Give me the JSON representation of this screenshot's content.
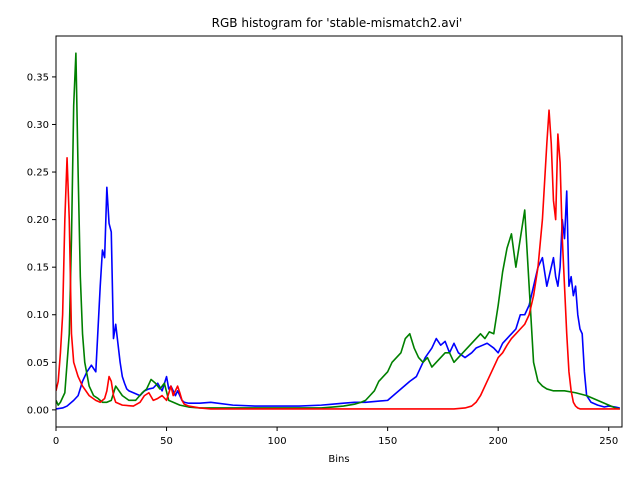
{
  "chart_data": {
    "type": "line",
    "title": "RGB histogram for 'stable-mismatch2.avi'",
    "xlabel": "Bins",
    "ylabel": "",
    "xlim": [
      0,
      256
    ],
    "ylim": [
      -0.018,
      0.393
    ],
    "grid": false,
    "legend": "none",
    "xticks": [
      0,
      50,
      100,
      150,
      200,
      250
    ],
    "xtick_labels": [
      "0",
      "50",
      "100",
      "150",
      "200",
      "250"
    ],
    "yticks": [
      0.0,
      0.05,
      0.1,
      0.15,
      0.2,
      0.25,
      0.3,
      0.35
    ],
    "ytick_labels": [
      "0.00",
      "0.05",
      "0.10",
      "0.15",
      "0.20",
      "0.25",
      "0.30",
      "0.35"
    ],
    "series": [
      {
        "name": "blue",
        "color": "#0000ff",
        "x": [
          0,
          3,
          5,
          8,
          10,
          12,
          14,
          16,
          18,
          20,
          21,
          22,
          23,
          24,
          25,
          26,
          27,
          28,
          29,
          30,
          31,
          32,
          33,
          35,
          38,
          40,
          42,
          44,
          46,
          48,
          50,
          51,
          52,
          53,
          54,
          55,
          57,
          58,
          60,
          65,
          70,
          80,
          90,
          100,
          110,
          120,
          125,
          130,
          135,
          140,
          145,
          150,
          155,
          160,
          163,
          165,
          167,
          170,
          172,
          174,
          176,
          178,
          180,
          182,
          185,
          188,
          190,
          193,
          195,
          198,
          200,
          202,
          204,
          206,
          208,
          210,
          212,
          214,
          216,
          218,
          220,
          222,
          223,
          225,
          226,
          227,
          228,
          229,
          230,
          231,
          232,
          233,
          234,
          235,
          236,
          237,
          238,
          239,
          240,
          242,
          245,
          248,
          250,
          253,
          255
        ],
        "values": [
          0.001,
          0.002,
          0.004,
          0.01,
          0.015,
          0.03,
          0.04,
          0.047,
          0.04,
          0.13,
          0.168,
          0.16,
          0.234,
          0.196,
          0.187,
          0.075,
          0.09,
          0.07,
          0.05,
          0.035,
          0.028,
          0.022,
          0.02,
          0.018,
          0.015,
          0.02,
          0.022,
          0.023,
          0.028,
          0.02,
          0.035,
          0.022,
          0.025,
          0.02,
          0.015,
          0.02,
          0.01,
          0.008,
          0.007,
          0.007,
          0.008,
          0.005,
          0.004,
          0.004,
          0.004,
          0.005,
          0.006,
          0.007,
          0.008,
          0.008,
          0.009,
          0.01,
          0.02,
          0.03,
          0.035,
          0.045,
          0.055,
          0.065,
          0.075,
          0.068,
          0.072,
          0.06,
          0.07,
          0.06,
          0.055,
          0.06,
          0.065,
          0.068,
          0.07,
          0.065,
          0.06,
          0.07,
          0.075,
          0.08,
          0.085,
          0.1,
          0.1,
          0.11,
          0.13,
          0.15,
          0.16,
          0.13,
          0.14,
          0.16,
          0.14,
          0.13,
          0.15,
          0.2,
          0.18,
          0.23,
          0.13,
          0.14,
          0.12,
          0.13,
          0.1,
          0.085,
          0.08,
          0.04,
          0.015,
          0.008,
          0.005,
          0.003,
          0.004,
          0.003,
          0.002
        ]
      },
      {
        "name": "green",
        "color": "#008000",
        "x": [
          0,
          1,
          2,
          4,
          6,
          7,
          8,
          9,
          10,
          11,
          12,
          13,
          15,
          17,
          19,
          21,
          23,
          25,
          27,
          30,
          33,
          36,
          39,
          41,
          43,
          45,
          47,
          49,
          51,
          53,
          56,
          60,
          65,
          70,
          80,
          90,
          100,
          110,
          120,
          125,
          130,
          135,
          138,
          140,
          142,
          144,
          146,
          148,
          150,
          152,
          154,
          156,
          158,
          160,
          162,
          164,
          166,
          168,
          170,
          172,
          174,
          176,
          178,
          180,
          182,
          184,
          186,
          188,
          190,
          192,
          194,
          196,
          198,
          200,
          202,
          204,
          206,
          208,
          210,
          212,
          214,
          216,
          218,
          220,
          222,
          225,
          230,
          235,
          240,
          245,
          250,
          253,
          255
        ],
        "values": [
          0.01,
          0.005,
          0.008,
          0.018,
          0.08,
          0.18,
          0.32,
          0.375,
          0.25,
          0.14,
          0.08,
          0.05,
          0.025,
          0.015,
          0.012,
          0.008,
          0.008,
          0.01,
          0.025,
          0.015,
          0.01,
          0.01,
          0.018,
          0.022,
          0.032,
          0.028,
          0.022,
          0.028,
          0.01,
          0.008,
          0.005,
          0.003,
          0.002,
          0.002,
          0.002,
          0.002,
          0.002,
          0.002,
          0.002,
          0.003,
          0.004,
          0.006,
          0.008,
          0.01,
          0.015,
          0.02,
          0.03,
          0.035,
          0.04,
          0.05,
          0.055,
          0.06,
          0.075,
          0.08,
          0.065,
          0.055,
          0.05,
          0.055,
          0.045,
          0.05,
          0.055,
          0.06,
          0.06,
          0.05,
          0.055,
          0.06,
          0.065,
          0.07,
          0.075,
          0.08,
          0.075,
          0.082,
          0.08,
          0.11,
          0.145,
          0.17,
          0.185,
          0.15,
          0.18,
          0.21,
          0.13,
          0.05,
          0.03,
          0.025,
          0.022,
          0.02,
          0.02,
          0.018,
          0.015,
          0.01,
          0.005,
          0.002,
          0.001
        ]
      },
      {
        "name": "red",
        "color": "#ff0000",
        "x": [
          0,
          1,
          2,
          3,
          4,
          5,
          6,
          7,
          8,
          10,
          12,
          15,
          18,
          20,
          22,
          23,
          24,
          25,
          26,
          27,
          30,
          35,
          38,
          40,
          42,
          44,
          46,
          48,
          50,
          52,
          53,
          54,
          55,
          56,
          57,
          58,
          60,
          65,
          70,
          80,
          100,
          150,
          170,
          180,
          185,
          188,
          190,
          192,
          195,
          198,
          200,
          202,
          204,
          206,
          208,
          210,
          212,
          214,
          216,
          218,
          220,
          221,
          222,
          223,
          224,
          225,
          226,
          227,
          228,
          229,
          230,
          231,
          232,
          233,
          234,
          235,
          236,
          237,
          238,
          240,
          245,
          250,
          255
        ],
        "values": [
          0.02,
          0.03,
          0.06,
          0.1,
          0.2,
          0.265,
          0.2,
          0.08,
          0.05,
          0.035,
          0.025,
          0.015,
          0.01,
          0.008,
          0.012,
          0.02,
          0.035,
          0.03,
          0.015,
          0.008,
          0.005,
          0.004,
          0.008,
          0.015,
          0.018,
          0.01,
          0.012,
          0.015,
          0.01,
          0.025,
          0.015,
          0.02,
          0.025,
          0.018,
          0.01,
          0.006,
          0.004,
          0.002,
          0.001,
          0.001,
          0.001,
          0.001,
          0.001,
          0.001,
          0.002,
          0.004,
          0.008,
          0.015,
          0.03,
          0.045,
          0.055,
          0.06,
          0.068,
          0.075,
          0.08,
          0.085,
          0.09,
          0.1,
          0.12,
          0.15,
          0.2,
          0.24,
          0.28,
          0.315,
          0.28,
          0.22,
          0.2,
          0.29,
          0.26,
          0.18,
          0.13,
          0.08,
          0.04,
          0.02,
          0.008,
          0.004,
          0.002,
          0.001,
          0.001,
          0.001,
          0.001,
          0.001,
          0.001
        ]
      }
    ]
  }
}
